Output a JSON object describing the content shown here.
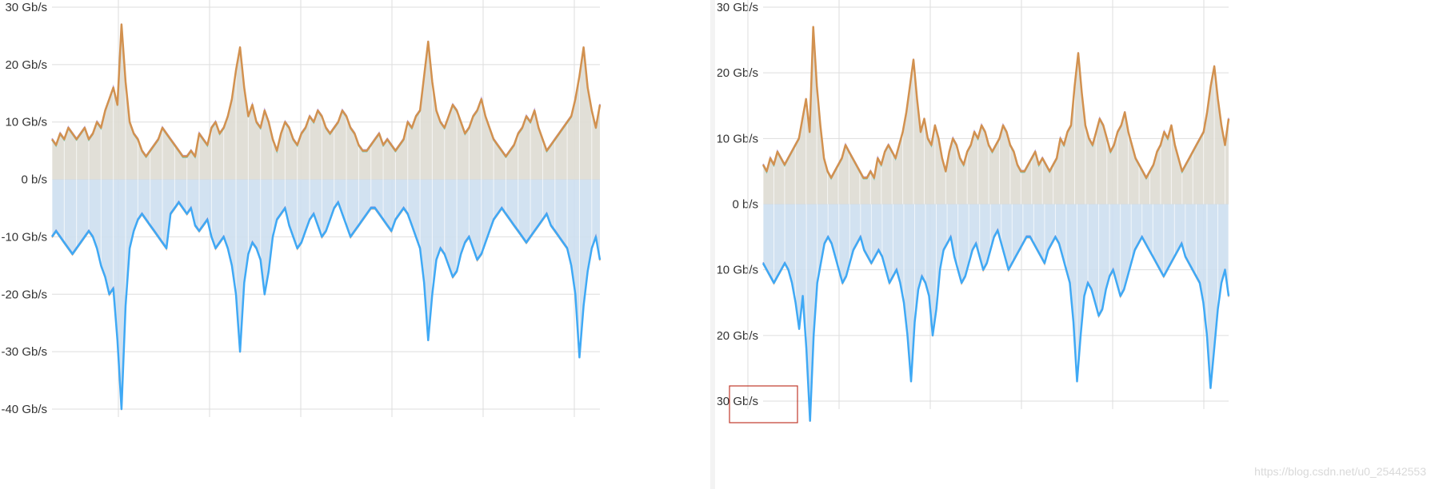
{
  "chart_data": [
    {
      "type": "area",
      "ylim": [
        -41,
        30
      ],
      "ticks": [
        "30 Gb/s",
        "20 Gb/s",
        "10 Gb/s",
        "0 b/s",
        "-10 Gb/s",
        "-20 Gb/s",
        "-30 Gb/s",
        "-40 Gb/s"
      ],
      "tick_values": [
        30,
        20,
        10,
        0,
        -10,
        -20,
        -30,
        -40
      ],
      "grid": true,
      "series": [
        {
          "direction": "inbound",
          "color": "#d2914f",
          "values": [
            7,
            6,
            8,
            7,
            9,
            8,
            7,
            8,
            9,
            7,
            8,
            10,
            9,
            12,
            14,
            16,
            13,
            27,
            17,
            10,
            8,
            7,
            5,
            4,
            5,
            6,
            7,
            9,
            8,
            7,
            6,
            5,
            4,
            4,
            5,
            4,
            8,
            7,
            6,
            9,
            10,
            8,
            9,
            11,
            14,
            19,
            23,
            16,
            11,
            13,
            10,
            9,
            12,
            10,
            7,
            5,
            8,
            10,
            9,
            7,
            6,
            8,
            9,
            11,
            10,
            12,
            11,
            9,
            8,
            9,
            10,
            12,
            11,
            9,
            8,
            6,
            5,
            5,
            6,
            7,
            8,
            6,
            7,
            6,
            5,
            6,
            7,
            10,
            9,
            11,
            12,
            18,
            24,
            17,
            12,
            10,
            9,
            11,
            13,
            12,
            10,
            8,
            9,
            11,
            12,
            14,
            11,
            9,
            7,
            6,
            5,
            4,
            5,
            6,
            8,
            9,
            11,
            10,
            12,
            9,
            7,
            5,
            6,
            7,
            8,
            9,
            10,
            11,
            14,
            18,
            23,
            16,
            12,
            9,
            13
          ]
        },
        {
          "direction": "outbound",
          "color": "#3fa9f5",
          "values": [
            -10,
            -9,
            -10,
            -11,
            -12,
            -13,
            -12,
            -11,
            -10,
            -9,
            -10,
            -12,
            -15,
            -17,
            -20,
            -19,
            -28,
            -40,
            -22,
            -12,
            -9,
            -7,
            -6,
            -7,
            -8,
            -9,
            -10,
            -11,
            -12,
            -6,
            -5,
            -4,
            -5,
            -6,
            -5,
            -8,
            -9,
            -8,
            -7,
            -10,
            -12,
            -11,
            -10,
            -12,
            -15,
            -20,
            -30,
            -18,
            -13,
            -11,
            -12,
            -14,
            -20,
            -16,
            -10,
            -7,
            -6,
            -5,
            -8,
            -10,
            -12,
            -11,
            -9,
            -7,
            -6,
            -8,
            -10,
            -9,
            -7,
            -5,
            -4,
            -6,
            -8,
            -10,
            -9,
            -8,
            -7,
            -6,
            -5,
            -5,
            -6,
            -7,
            -8,
            -9,
            -7,
            -6,
            -5,
            -6,
            -8,
            -10,
            -12,
            -18,
            -28,
            -20,
            -14,
            -12,
            -13,
            -15,
            -17,
            -16,
            -13,
            -11,
            -10,
            -12,
            -14,
            -13,
            -11,
            -9,
            -7,
            -6,
            -5,
            -6,
            -7,
            -8,
            -9,
            -10,
            -11,
            -10,
            -9,
            -8,
            -7,
            -6,
            -8,
            -9,
            -10,
            -11,
            -12,
            -15,
            -20,
            -31,
            -22,
            -16,
            -12,
            -10,
            -14
          ]
        }
      ]
    },
    {
      "type": "area",
      "ylim": [
        -33,
        30
      ],
      "ticks": [
        "30 Gb/s",
        "20 Gb/s",
        "10 Gb/s",
        "0 b/s",
        "-10 Gb/s",
        "-20 Gb/s",
        "-30 Gb/s"
      ],
      "tick_values": [
        30,
        20,
        10,
        0,
        -10,
        -20,
        -30
      ],
      "grid": true,
      "series": [
        {
          "direction": "inbound",
          "color": "#d2914f",
          "values": [
            6,
            5,
            7,
            6,
            8,
            7,
            6,
            7,
            8,
            9,
            10,
            13,
            16,
            11,
            27,
            18,
            12,
            7,
            5,
            4,
            5,
            6,
            7,
            9,
            8,
            7,
            6,
            5,
            4,
            4,
            5,
            4,
            7,
            6,
            8,
            9,
            8,
            7,
            9,
            11,
            14,
            18,
            22,
            16,
            11,
            13,
            10,
            9,
            12,
            10,
            7,
            5,
            8,
            10,
            9,
            7,
            6,
            8,
            9,
            11,
            10,
            12,
            11,
            9,
            8,
            9,
            10,
            12,
            11,
            9,
            8,
            6,
            5,
            5,
            6,
            7,
            8,
            6,
            7,
            6,
            5,
            6,
            7,
            10,
            9,
            11,
            12,
            18,
            23,
            17,
            12,
            10,
            9,
            11,
            13,
            12,
            10,
            8,
            9,
            11,
            12,
            14,
            11,
            9,
            7,
            6,
            5,
            4,
            5,
            6,
            8,
            9,
            11,
            10,
            12,
            9,
            7,
            5,
            6,
            7,
            8,
            9,
            10,
            11,
            14,
            18,
            21,
            16,
            12,
            9,
            13
          ]
        },
        {
          "direction": "outbound",
          "color": "#3fa9f5",
          "values": [
            -9,
            -10,
            -11,
            -12,
            -11,
            -10,
            -9,
            -10,
            -12,
            -15,
            -19,
            -14,
            -22,
            -33,
            -20,
            -12,
            -9,
            -6,
            -5,
            -6,
            -8,
            -10,
            -12,
            -11,
            -9,
            -7,
            -6,
            -5,
            -7,
            -8,
            -9,
            -8,
            -7,
            -8,
            -10,
            -12,
            -11,
            -10,
            -12,
            -15,
            -20,
            -27,
            -18,
            -13,
            -11,
            -12,
            -14,
            -20,
            -16,
            -10,
            -7,
            -6,
            -5,
            -8,
            -10,
            -12,
            -11,
            -9,
            -7,
            -6,
            -8,
            -10,
            -9,
            -7,
            -5,
            -4,
            -6,
            -8,
            -10,
            -9,
            -8,
            -7,
            -6,
            -5,
            -5,
            -6,
            -7,
            -8,
            -9,
            -7,
            -6,
            -5,
            -6,
            -8,
            -10,
            -12,
            -18,
            -27,
            -20,
            -14,
            -12,
            -13,
            -15,
            -17,
            -16,
            -13,
            -11,
            -10,
            -12,
            -14,
            -13,
            -11,
            -9,
            -7,
            -6,
            -5,
            -6,
            -7,
            -8,
            -9,
            -10,
            -11,
            -10,
            -9,
            -8,
            -7,
            -6,
            -8,
            -9,
            -10,
            -11,
            -12,
            -15,
            -20,
            -28,
            -22,
            -16,
            -12,
            -10,
            -14
          ]
        }
      ]
    }
  ],
  "colors": {
    "inbound_fill": "#dedbd3",
    "outbound_fill": "#cddff0",
    "grid": "#dddddd",
    "zero_line": "#d8d8d8",
    "highlight": "#c0392b"
  },
  "watermark": "https://blog.csdn.net/u0_25442553"
}
